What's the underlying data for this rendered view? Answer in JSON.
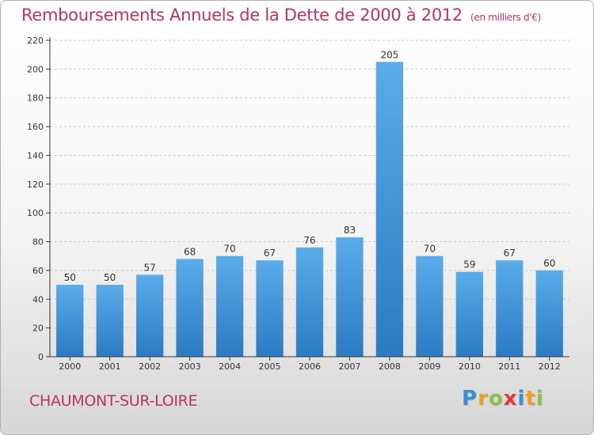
{
  "title": "Remboursements Annuels de la Dette de 2000 à 2012",
  "unit_label": "(en milliers d'€)",
  "city": "CHAUMONT-SUR-LOIRE",
  "logo": {
    "letters": [
      "P",
      "r",
      "o",
      "x",
      "i",
      "t",
      "i"
    ],
    "colors": [
      "#3a8fd6",
      "#f0a020",
      "#8bc34a",
      "#e53935",
      "#3a8fd6",
      "#f0a020",
      "#8bc34a"
    ]
  },
  "colors": {
    "bar_top": "#5aacea",
    "bar_bottom": "#2b7bc2",
    "grid": "#c8c8c8",
    "axis": "#333333"
  },
  "chart_data": {
    "type": "bar",
    "categories": [
      "2000",
      "2001",
      "2002",
      "2003",
      "2004",
      "2005",
      "2006",
      "2007",
      "2008",
      "2009",
      "2010",
      "2011",
      "2012"
    ],
    "values": [
      50,
      50,
      57,
      68,
      70,
      67,
      76,
      83,
      205,
      70,
      59,
      67,
      60
    ],
    "ylim": [
      0,
      220
    ],
    "yticks": [
      0,
      20,
      40,
      60,
      80,
      100,
      120,
      140,
      160,
      180,
      200,
      220
    ],
    "grid": true,
    "data_labels": true
  }
}
